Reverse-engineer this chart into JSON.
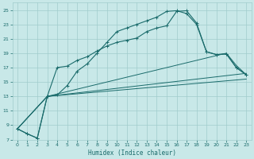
{
  "xlabel": "Humidex (Indice chaleur)",
  "bg_color": "#c8e8e8",
  "grid_color": "#a0cccc",
  "line_color": "#1a6b6b",
  "xlim": [
    -0.5,
    23.5
  ],
  "ylim": [
    7,
    26
  ],
  "yticks": [
    7,
    9,
    11,
    13,
    15,
    17,
    19,
    21,
    23,
    25
  ],
  "xticks": [
    0,
    1,
    2,
    3,
    4,
    5,
    6,
    7,
    8,
    9,
    10,
    11,
    12,
    13,
    14,
    15,
    16,
    17,
    18,
    19,
    20,
    21,
    22,
    23
  ],
  "line1_x": [
    0,
    1,
    2,
    3,
    4,
    5,
    6,
    7,
    8,
    9,
    10,
    11,
    12,
    13,
    14,
    15,
    16,
    17,
    18,
    19,
    20,
    21,
    22,
    23
  ],
  "line1_y": [
    8.5,
    7.8,
    7.2,
    13.0,
    17.0,
    17.2,
    18.0,
    18.5,
    19.3,
    20.0,
    20.5,
    20.8,
    21.1,
    22.0,
    22.5,
    22.8,
    24.8,
    24.9,
    23.2,
    19.2,
    18.8,
    18.9,
    17.0,
    16.0
  ],
  "line2_x": [
    0,
    1,
    2,
    3,
    4,
    5,
    6,
    7,
    8,
    9,
    10,
    11,
    12,
    13,
    14,
    15,
    16,
    17,
    18,
    19,
    20,
    21,
    22,
    23
  ],
  "line2_y": [
    8.5,
    7.8,
    7.2,
    13.0,
    13.2,
    14.5,
    16.5,
    17.5,
    19.0,
    20.5,
    22.0,
    22.5,
    23.0,
    23.5,
    24.0,
    24.8,
    24.9,
    24.5,
    23.0,
    19.2,
    18.8,
    18.9,
    17.0,
    16.0
  ],
  "line3_x": [
    0,
    3,
    23
  ],
  "line3_y": [
    8.5,
    13.0,
    16.2
  ],
  "line4_x": [
    0,
    3,
    23
  ],
  "line4_y": [
    8.5,
    13.0,
    15.4
  ],
  "line5_x": [
    0,
    3,
    21,
    22,
    23
  ],
  "line5_y": [
    8.5,
    13.0,
    19.0,
    17.3,
    16.0
  ]
}
